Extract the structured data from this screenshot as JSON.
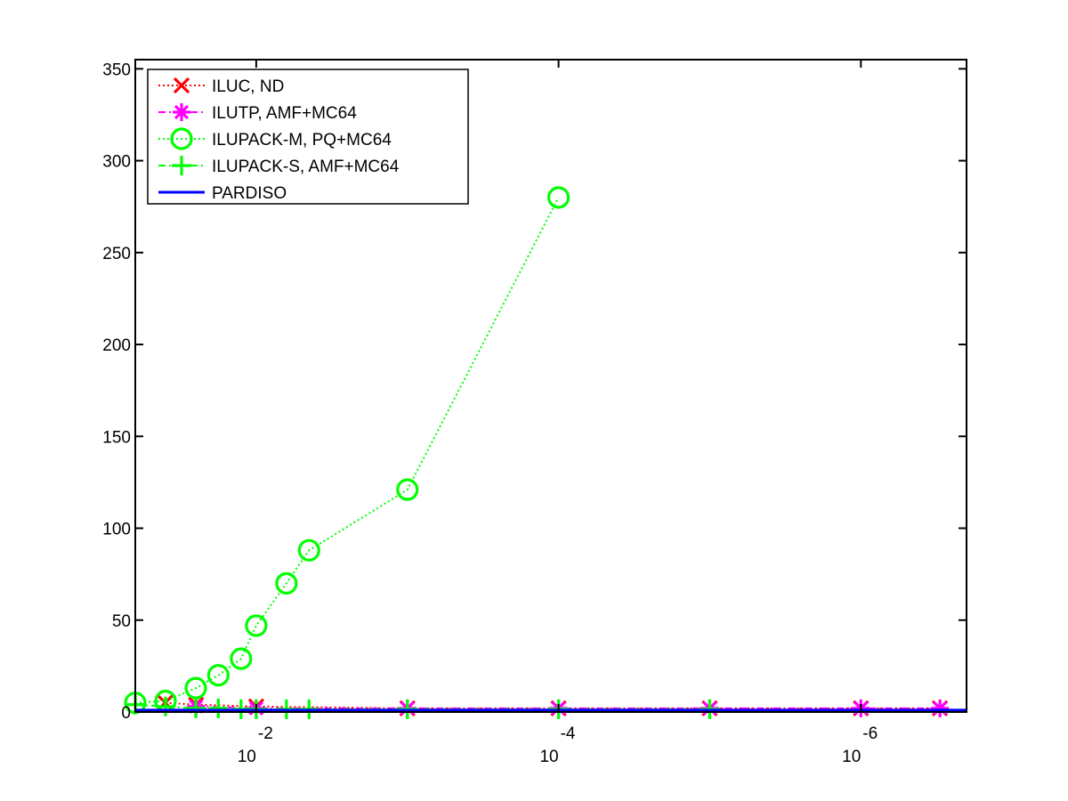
{
  "chart_data": {
    "type": "line",
    "x_scale": "log",
    "x_reversed": true,
    "xlim": [
      0.0631,
      2e-07
    ],
    "ylim": [
      0,
      355
    ],
    "grid": false,
    "legend_position": "top-left",
    "x_ticks": [
      {
        "x": 0.01,
        "base": "10",
        "exp": "-2"
      },
      {
        "x": 0.0001,
        "base": "10",
        "exp": "-4"
      },
      {
        "x": 1e-06,
        "base": "10",
        "exp": "-6"
      }
    ],
    "y_ticks": [
      0,
      50,
      100,
      150,
      200,
      250,
      300,
      350
    ],
    "series": [
      {
        "name": "ILUC,  ND",
        "color": "#ff0000",
        "line": "dotted",
        "marker": "x",
        "x": [
          0.04,
          0.025,
          0.01,
          0.001,
          0.0001,
          1e-05,
          1e-06,
          3e-07
        ],
        "y": [
          5,
          4,
          3,
          2,
          2,
          2,
          2,
          2
        ]
      },
      {
        "name": "ILUTP, AMF+MC64",
        "color": "#ff00ff",
        "line": "dash-dot",
        "marker": "asterisk",
        "x": [
          0.025,
          0.01,
          0.001,
          0.0001,
          1e-05,
          1e-06,
          3e-07
        ],
        "y": [
          3,
          2,
          2,
          2,
          2,
          2,
          2
        ]
      },
      {
        "name": "ILUPACK-M, PQ+MC64",
        "color": "#00ff00",
        "line": "dotted",
        "marker": "circle",
        "x": [
          0.0631,
          0.0398,
          0.0251,
          0.0178,
          0.0126,
          0.01,
          0.00631,
          0.00447,
          0.001,
          0.0001
        ],
        "y": [
          5,
          6,
          13,
          20,
          29,
          47,
          70,
          88,
          121,
          280
        ]
      },
      {
        "name": "ILUPACK-S, AMF+MC64",
        "color": "#00ff00",
        "line": "dash-dot",
        "marker": "plus",
        "x": [
          0.0631,
          0.0398,
          0.0251,
          0.0178,
          0.0126,
          0.01,
          0.00631,
          0.00447,
          0.001,
          0.0001,
          1e-05
        ],
        "y": [
          4,
          3,
          2,
          2,
          1.5,
          1.5,
          1.5,
          1.5,
          1.5,
          1.5,
          1.5
        ]
      },
      {
        "name": "PARDISO",
        "color": "#0000ff",
        "line": "solid",
        "marker": "none",
        "x": [
          0.0631,
          2e-07
        ],
        "y": [
          1,
          1
        ]
      }
    ]
  }
}
